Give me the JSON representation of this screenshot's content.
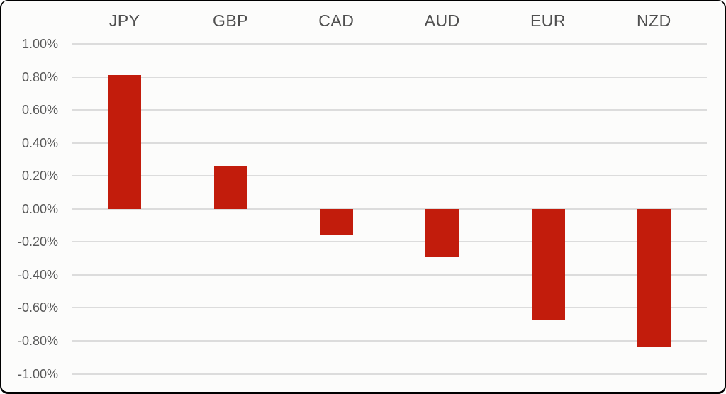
{
  "chart_data": {
    "type": "bar",
    "categories": [
      "JPY",
      "GBP",
      "CAD",
      "AUD",
      "EUR",
      "NZD"
    ],
    "values": [
      0.81,
      0.26,
      -0.16,
      -0.29,
      -0.67,
      -0.84
    ],
    "title": "",
    "xlabel": "",
    "ylabel": "",
    "ylim": [
      -1.0,
      1.0
    ],
    "y_tick_labels": [
      "1.00%",
      "0.80%",
      "0.60%",
      "0.40%",
      "0.20%",
      "0.00%",
      "-0.20%",
      "-0.40%",
      "-0.60%",
      "-0.80%",
      "-1.00%"
    ],
    "grid": true,
    "legend": false,
    "colors": {
      "bar": "#c21c0c",
      "gridline": "#dcdcdc",
      "tick_label": "#595959",
      "category_label": "#4f4f4f",
      "background": "#fcfcfb",
      "border": "#000000"
    }
  }
}
